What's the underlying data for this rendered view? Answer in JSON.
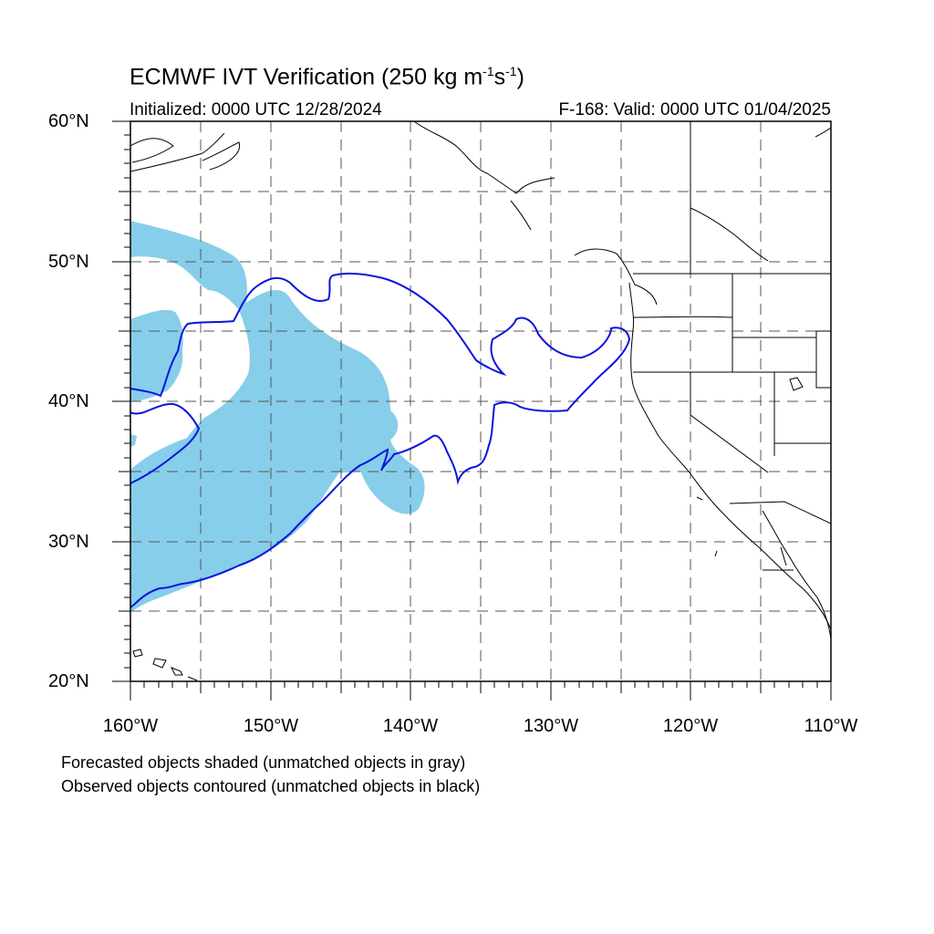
{
  "header": {
    "title_prefix": "ECMWF IVT Verification (250 kg m",
    "title_exp1": "-1",
    "title_mid": "s",
    "title_exp2": "-1",
    "title_suffix": ")",
    "initialized": "Initialized: 0000 UTC 12/28/2024",
    "valid": "F-168: Valid: 0000 UTC 01/04/2025"
  },
  "axes": {
    "lat_labels": [
      "60°N",
      "50°N",
      "40°N",
      "30°N",
      "20°N"
    ],
    "lon_labels": [
      "160°W",
      "150°W",
      "140°W",
      "130°W",
      "120°W",
      "110°W"
    ],
    "lat_range": [
      20,
      60
    ],
    "lon_range": [
      -160,
      -110
    ],
    "grid": "dashed, every 5 degrees"
  },
  "footer": {
    "line1": "Forecasted objects shaded (unmatched objects in gray)",
    "line2": "Observed objects contoured (unmatched objects in black)"
  },
  "colors": {
    "forecast_fill": "#87ceea",
    "observed_contour": "#0a14e0",
    "coastline": "#000000"
  }
}
